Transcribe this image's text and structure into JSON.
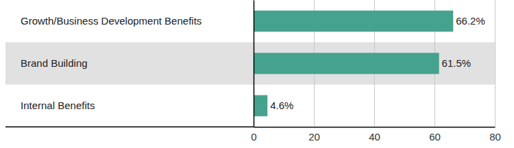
{
  "chart_data": {
    "type": "bar",
    "orientation": "horizontal",
    "categories": [
      "Growth/Business Development Benefits",
      "Brand Building",
      "Internal Benefits"
    ],
    "values": [
      66.2,
      61.5,
      4.6
    ],
    "value_labels": [
      "66.2%",
      "61.5%",
      "4.6%"
    ],
    "data_labels": true,
    "color": "#45a28e",
    "xlim": [
      0,
      80
    ],
    "xticks": [
      0,
      20,
      40,
      60,
      80
    ],
    "grid": true
  }
}
